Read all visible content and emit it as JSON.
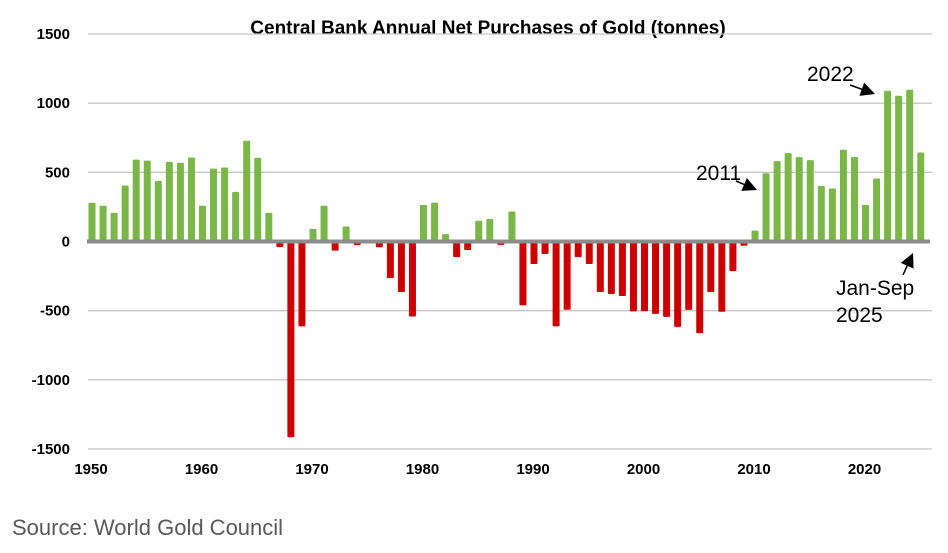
{
  "chart_data": {
    "type": "bar",
    "title": "Central Bank Annual Net Purchases of Gold (tonnes)",
    "xlabel": "",
    "ylabel": "",
    "ylim": [
      -1500,
      1500
    ],
    "yticks": [
      1500,
      1000,
      500,
      0,
      -500,
      -1000,
      -1500
    ],
    "ytick_labels": [
      "1500",
      "1000",
      "500",
      "0",
      "-500",
      "-1000",
      "-1500"
    ],
    "xticks": [
      1950,
      1960,
      1970,
      1980,
      1990,
      2000,
      2010,
      2020
    ],
    "xtick_labels": [
      "1950",
      "1960",
      "1970",
      "1980",
      "1990",
      "2000",
      "2010",
      "2020"
    ],
    "grid": true,
    "positive_color": "#7AB648",
    "negative_color": "#CC0000",
    "zero_line_color": "#8C8C8C",
    "grid_color": "#C8C8C8",
    "categories": [
      1950,
      1951,
      1952,
      1953,
      1954,
      1955,
      1956,
      1957,
      1958,
      1959,
      1960,
      1961,
      1962,
      1963,
      1964,
      1965,
      1966,
      1967,
      1968,
      1969,
      1970,
      1971,
      1972,
      1973,
      1974,
      1975,
      1976,
      1977,
      1978,
      1979,
      1980,
      1981,
      1982,
      1983,
      1984,
      1985,
      1986,
      1987,
      1988,
      1989,
      1990,
      1991,
      1992,
      1993,
      1994,
      1995,
      1996,
      1997,
      1998,
      1999,
      2000,
      2001,
      2002,
      2003,
      2004,
      2005,
      2006,
      2007,
      2008,
      2009,
      2010,
      2011,
      2012,
      2013,
      2014,
      2015,
      2016,
      2017,
      2018,
      2019,
      2020,
      2021,
      2022,
      2023,
      2024,
      2025
    ],
    "values": [
      280,
      258,
      207,
      405,
      592,
      585,
      438,
      576,
      569,
      607,
      258,
      527,
      535,
      359,
      728,
      605,
      207,
      -40,
      -1415,
      -614,
      90,
      258,
      -66,
      108,
      -25,
      0,
      -42,
      -265,
      -366,
      -542,
      264,
      281,
      53,
      -113,
      -62,
      150,
      164,
      -24,
      217,
      -462,
      -163,
      -90,
      -614,
      -493,
      -113,
      -163,
      -366,
      -380,
      -394,
      -505,
      -503,
      -523,
      -545,
      -617,
      -494,
      -662,
      -366,
      -508,
      -214,
      -31,
      79,
      493,
      581,
      639,
      610,
      588,
      402,
      383,
      663,
      612,
      265,
      455,
      1090,
      1054,
      1097,
      643
    ],
    "annotations": [
      {
        "text": "2011",
        "target_year": 2011
      },
      {
        "text": "2022",
        "target_year": 2022
      },
      {
        "text": "Jan-Sep",
        "target_year": 2025
      },
      {
        "text": "2025",
        "target_year": 2025
      }
    ]
  },
  "source": "Source: World Gold Council"
}
